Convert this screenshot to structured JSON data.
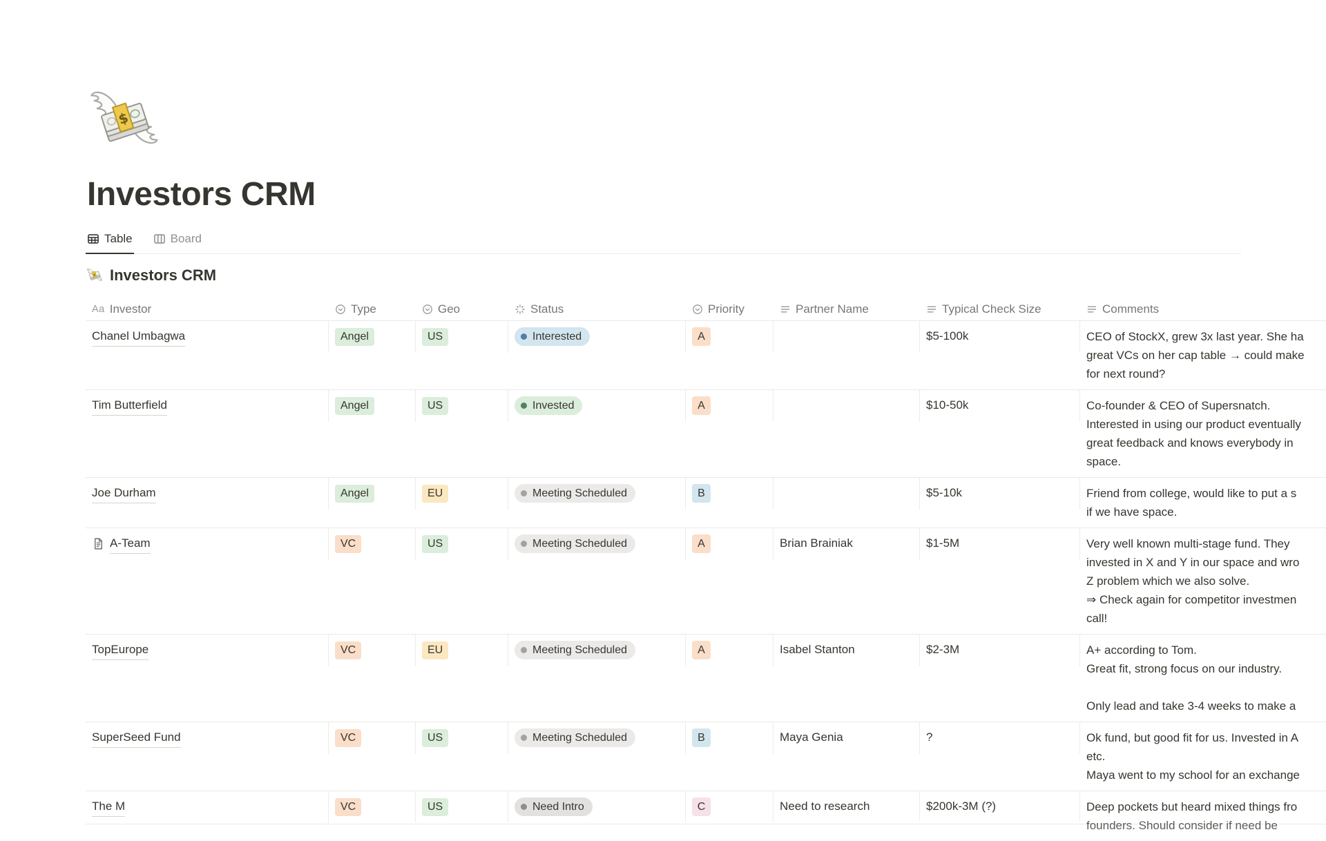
{
  "page": {
    "title": "Investors CRM",
    "icon": "money-with-wings-icon"
  },
  "tabs": [
    {
      "label": "Table",
      "icon": "table-icon",
      "active": true
    },
    {
      "label": "Board",
      "icon": "board-icon",
      "active": false
    }
  ],
  "view": {
    "title": "Investors CRM",
    "icon": "money-with-wings-icon"
  },
  "table": {
    "columns": [
      {
        "label": "Investor",
        "icon": "title-icon"
      },
      {
        "label": "Type",
        "icon": "select-icon"
      },
      {
        "label": "Geo",
        "icon": "select-icon"
      },
      {
        "label": "Status",
        "icon": "status-icon"
      },
      {
        "label": "Priority",
        "icon": "select-icon"
      },
      {
        "label": "Partner Name",
        "icon": "text-icon"
      },
      {
        "label": "Typical Check Size",
        "icon": "text-icon"
      },
      {
        "label": "Comments",
        "icon": "text-icon"
      }
    ],
    "rows": [
      {
        "investor": "Chanel Umbagwa",
        "page_icon": false,
        "type": {
          "label": "Angel",
          "color": "green"
        },
        "geo": {
          "label": "US",
          "color": "green"
        },
        "status": {
          "label": "Interested",
          "color": "blue"
        },
        "priority": {
          "label": "A",
          "color": "peach"
        },
        "partner": "",
        "check_size": "$5-100k",
        "comments": [
          "CEO of StockX, grew 3x last year. She ha",
          "great VCs on her cap table → could make",
          "for next round?"
        ]
      },
      {
        "investor": "Tim Butterfield",
        "page_icon": false,
        "type": {
          "label": "Angel",
          "color": "green"
        },
        "geo": {
          "label": "US",
          "color": "green"
        },
        "status": {
          "label": "Invested",
          "color": "green"
        },
        "priority": {
          "label": "A",
          "color": "peach"
        },
        "partner": "",
        "check_size": "$10-50k",
        "comments": [
          "Co-founder & CEO of Supersnatch.",
          "Interested in using our product eventually",
          "great feedback and knows everybody in",
          "space."
        ]
      },
      {
        "investor": "Joe Durham",
        "page_icon": false,
        "type": {
          "label": "Angel",
          "color": "green"
        },
        "geo": {
          "label": "EU",
          "color": "yellow"
        },
        "status": {
          "label": "Meeting Scheduled",
          "color": "gray"
        },
        "priority": {
          "label": "B",
          "color": "blue"
        },
        "partner": "",
        "check_size": "$5-10k",
        "comments": [
          "Friend from college, would like to put a s",
          "if we have space."
        ]
      },
      {
        "investor": "A-Team",
        "page_icon": true,
        "type": {
          "label": "VC",
          "color": "peach"
        },
        "geo": {
          "label": "US",
          "color": "green"
        },
        "status": {
          "label": "Meeting Scheduled",
          "color": "gray"
        },
        "priority": {
          "label": "A",
          "color": "peach"
        },
        "partner": "Brian Brainiak",
        "check_size": "$1-5M",
        "comments": [
          "Very well known multi-stage fund. They",
          "invested in X and Y in our space and wro",
          "Z problem which we also solve.",
          "⇒ Check again for competitor investmen",
          "call!"
        ]
      },
      {
        "investor": "TopEurope",
        "page_icon": false,
        "type": {
          "label": "VC",
          "color": "peach"
        },
        "geo": {
          "label": "EU",
          "color": "yellow"
        },
        "status": {
          "label": "Meeting Scheduled",
          "color": "gray"
        },
        "priority": {
          "label": "A",
          "color": "peach"
        },
        "partner": "Isabel Stanton",
        "check_size": "$2-3M",
        "comments": [
          "A+ according to Tom.",
          "Great fit, strong focus on our industry.",
          "",
          "Only lead and take 3-4 weeks to make a"
        ]
      },
      {
        "investor": "SuperSeed Fund",
        "page_icon": false,
        "type": {
          "label": "VC",
          "color": "peach"
        },
        "geo": {
          "label": "US",
          "color": "green"
        },
        "status": {
          "label": "Meeting Scheduled",
          "color": "gray"
        },
        "priority": {
          "label": "B",
          "color": "blue"
        },
        "partner": "Maya Genia",
        "check_size": "?",
        "comments": [
          "Ok fund, but good fit for us. Invested in A",
          "etc.",
          "Maya went to my school for an exchange"
        ]
      },
      {
        "investor": "The M",
        "page_icon": false,
        "type": {
          "label": "VC",
          "color": "peach"
        },
        "geo": {
          "label": "US",
          "color": "green"
        },
        "status": {
          "label": "Need Intro",
          "color": "gray2"
        },
        "priority": {
          "label": "C",
          "color": "pink"
        },
        "partner": "Need to research",
        "check_size": "$200k-3M (?)",
        "comments": [
          "Deep pockets but heard mixed things fro",
          "founders. Should consider if need be"
        ]
      }
    ]
  },
  "colors": {
    "text": "#37352F",
    "muted_text": "#787774",
    "divider": "#E9E9E7",
    "tag_green": "#DBEDDB",
    "tag_yellow": "#FBE7C0",
    "tag_peach": "#FADEC9",
    "tag_blue": "#D3E5EF",
    "tag_pink": "#F6E1E8",
    "status_gray": "#EBEAE8",
    "status_dark_gray": "#E2E1DF",
    "dot_blue": "#527DA5",
    "dot_green": "#548164",
    "dot_gray": "#A3A29E",
    "dot_dark_gray": "#8F8E8B"
  }
}
